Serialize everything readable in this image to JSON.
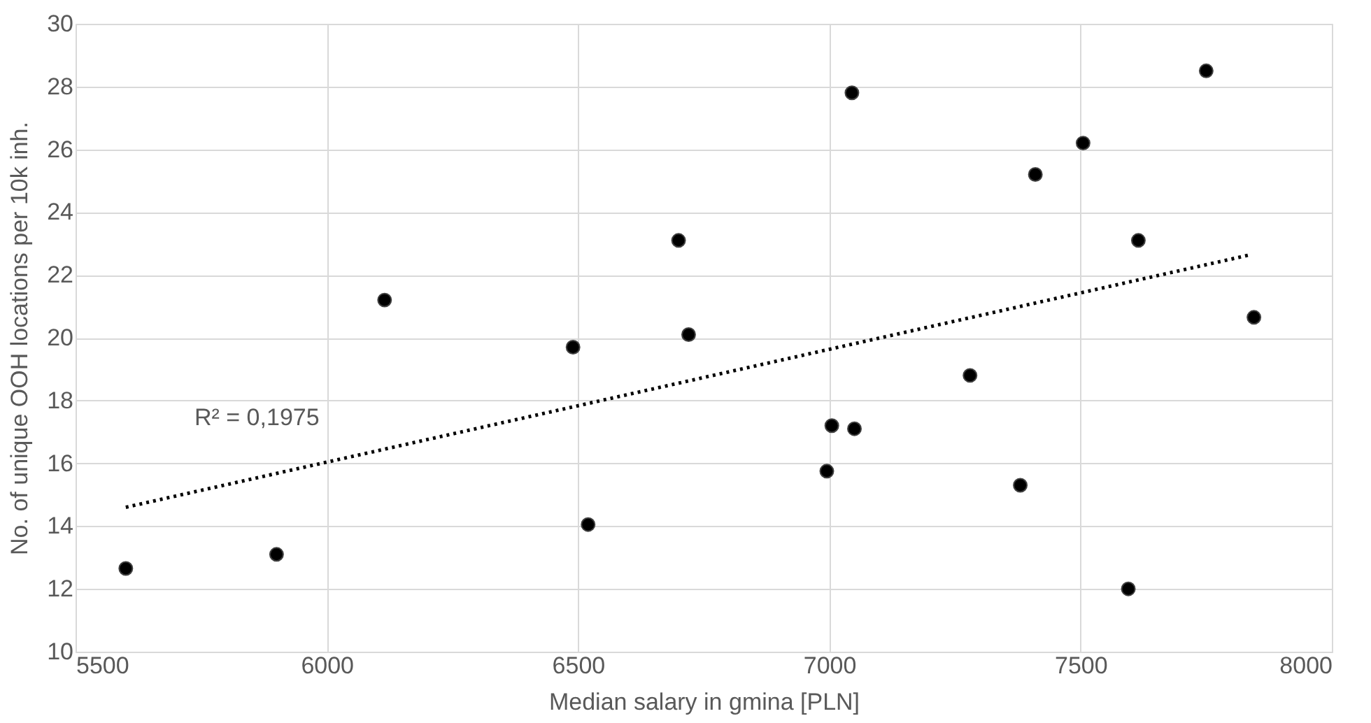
{
  "chart_data": {
    "type": "scatter",
    "xlabel": "Median salary in gmina [PLN]",
    "ylabel": "No. of unique OOH locations per 10k inh.",
    "series": [
      {
        "color": "#000000",
        "marker": "circle",
        "x": [
          5600,
          5900,
          6115,
          6490,
          6520,
          6700,
          6720,
          6995,
          7005,
          7045,
          7050,
          7280,
          7380,
          7410,
          7505,
          7595,
          7615,
          7750,
          7845
        ],
        "values": [
          12.65,
          13.1,
          21.2,
          19.7,
          14.05,
          23.1,
          20.1,
          15.75,
          17.2,
          27.8,
          17.1,
          18.8,
          15.3,
          25.2,
          26.2,
          12.0,
          23.1,
          28.5,
          20.65
        ]
      },
      {
        "type": "line",
        "color": "#000000",
        "line_style": "dotted",
        "marker": "none",
        "x": [
          5600,
          7840
        ],
        "values": [
          14.6,
          22.65
        ]
      }
    ],
    "annotations": [
      "R² = 0,1975"
    ],
    "xlim": [
      5500,
      8000
    ],
    "xticks": [
      5500,
      6000,
      6500,
      7000,
      7500,
      8000
    ],
    "ylim": [
      10,
      30
    ],
    "yticks": [
      10,
      12,
      14,
      16,
      18,
      20,
      22,
      24,
      26,
      28,
      30
    ],
    "grid": true
  }
}
